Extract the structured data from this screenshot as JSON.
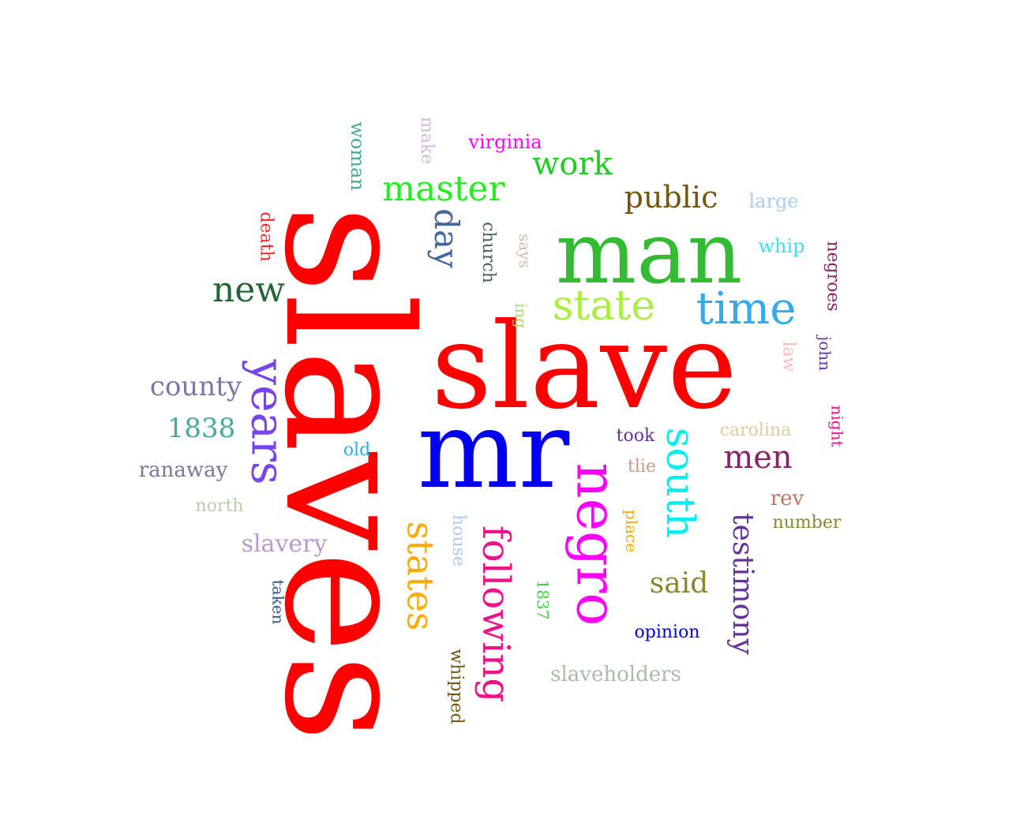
{
  "words": [
    {
      "text": "slaves",
      "color": "#ff0000",
      "vertical": true
    },
    {
      "text": "slave",
      "color": "#ff0000",
      "vertical": false
    },
    {
      "text": "mr",
      "color": "#0000ee",
      "vertical": false
    },
    {
      "text": "man",
      "color": "#33bb33",
      "vertical": false
    },
    {
      "text": "negro",
      "color": "#ff00ff",
      "vertical": true
    },
    {
      "text": "years",
      "color": "#7744ee",
      "vertical": true
    },
    {
      "text": "time",
      "color": "#33aaee",
      "vertical": false
    },
    {
      "text": "state",
      "color": "#aaee44",
      "vertical": false
    },
    {
      "text": "south",
      "color": "#00eeee",
      "vertical": true
    },
    {
      "text": "following",
      "color": "#ee1188",
      "vertical": true
    },
    {
      "text": "states",
      "color": "#ffaa00",
      "vertical": true
    },
    {
      "text": "master",
      "color": "#22ee22",
      "vertical": false
    },
    {
      "text": "new",
      "color": "#226633",
      "vertical": false
    },
    {
      "text": "day",
      "color": "#446699",
      "vertical": true
    },
    {
      "text": "men",
      "color": "#882266",
      "vertical": false
    },
    {
      "text": "testimony",
      "color": "#663399",
      "vertical": true
    },
    {
      "text": "public",
      "color": "#775511",
      "vertical": false
    },
    {
      "text": "work",
      "color": "#22cc22",
      "vertical": false
    },
    {
      "text": "county",
      "color": "#7777aa",
      "vertical": false
    },
    {
      "text": "said",
      "color": "#888833",
      "vertical": false
    },
    {
      "text": "1838",
      "color": "#44aa99",
      "vertical": false
    },
    {
      "text": "slavery",
      "color": "#bb99cc",
      "vertical": false
    },
    {
      "text": "ranaway",
      "color": "#777799",
      "vertical": false
    },
    {
      "text": "slaveholders",
      "color": "#aabbaa",
      "vertical": false
    },
    {
      "text": "virginia",
      "color": "#ff00ff",
      "vertical": false
    },
    {
      "text": "woman",
      "color": "#44aa99",
      "vertical": true
    },
    {
      "text": "make",
      "color": "#ccbbdd",
      "vertical": true
    },
    {
      "text": "church",
      "color": "#446655",
      "vertical": true
    },
    {
      "text": "says",
      "color": "#ccbbaa",
      "vertical": true
    },
    {
      "text": "ing",
      "color": "#aadd66",
      "vertical": true
    },
    {
      "text": "death",
      "color": "#ff2222",
      "vertical": true
    },
    {
      "text": "large",
      "color": "#aaccee",
      "vertical": false
    },
    {
      "text": "whip",
      "color": "#44ddee",
      "vertical": false
    },
    {
      "text": "negroes",
      "color": "#882266",
      "vertical": true
    },
    {
      "text": "law",
      "color": "#ffbbbb",
      "vertical": true
    },
    {
      "text": "john",
      "color": "#6633aa",
      "vertical": true
    },
    {
      "text": "night",
      "color": "#ee1188",
      "vertical": true
    },
    {
      "text": "carolina",
      "color": "#ddcc99",
      "vertical": false
    },
    {
      "text": "took",
      "color": "#663399",
      "vertical": false
    },
    {
      "text": "old",
      "color": "#33aaee",
      "vertical": false
    },
    {
      "text": "tlie",
      "color": "#cc9988",
      "vertical": false
    },
    {
      "text": "rev",
      "color": "#bb7766",
      "vertical": false
    },
    {
      "text": "number",
      "color": "#888833",
      "vertical": false
    },
    {
      "text": "place",
      "color": "#ffaa00",
      "vertical": true
    },
    {
      "text": "north",
      "color": "#bbccaa",
      "vertical": false
    },
    {
      "text": "house",
      "color": "#aaccee",
      "vertical": true
    },
    {
      "text": "1837",
      "color": "#44cc44",
      "vertical": true
    },
    {
      "text": "opinion",
      "color": "#0000ee",
      "vertical": false
    },
    {
      "text": "taken",
      "color": "#335588",
      "vertical": true
    },
    {
      "text": "whipped",
      "color": "#775511",
      "vertical": true
    }
  ]
}
